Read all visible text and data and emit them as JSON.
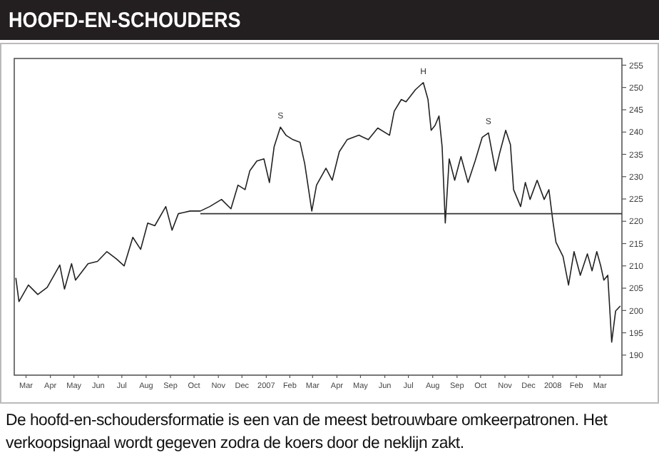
{
  "chart_data": {
    "type": "line",
    "title": "HOOFD-EN-SCHOUDERS",
    "annotations": [
      {
        "text": "S",
        "x": "2007-02-03",
        "y": 241.1
      },
      {
        "text": "H",
        "x": "2007-08-04",
        "y": 251.1
      },
      {
        "text": "S",
        "x": "2007-10-26",
        "y": 239.8
      },
      "De hoofd-en-schoudersformatie is een van de meest betrouwbare omkeerpatronen. Het verkoopsignaal wordt gegeven zodra de koers door de neklijn zakt."
    ],
    "series": [
      {
        "color": "#222222",
        "x": [
          "2006-03-03",
          "2006-03-07",
          "2006-03-19",
          "2006-03-31",
          "2006-04-12",
          "2006-04-28",
          "2006-05-04",
          "2006-05-13",
          "2006-05-18",
          "2006-06-03",
          "2006-06-15",
          "2006-06-27",
          "2006-07-09",
          "2006-07-19",
          "2006-07-30",
          "2006-08-09",
          "2006-08-18",
          "2006-08-27",
          "2006-09-10",
          "2006-09-18",
          "2006-09-26",
          "2006-10-11",
          "2006-10-24",
          "2006-11-05",
          "2006-11-20",
          "2006-12-02",
          "2006-12-11",
          "2006-12-20",
          "2006-12-26",
          "2007-01-04",
          "2007-01-13",
          "2007-01-20",
          "2007-01-26",
          "2007-02-03",
          "2007-02-10",
          "2007-02-19",
          "2007-02-28",
          "2007-03-06",
          "2007-03-15",
          "2007-03-21",
          "2007-04-02",
          "2007-04-10",
          "2007-04-19",
          "2007-04-29",
          "2007-05-14",
          "2007-05-26",
          "2007-06-07",
          "2007-06-22",
          "2007-06-28",
          "2007-07-07",
          "2007-07-13",
          "2007-07-25",
          "2007-08-04",
          "2007-08-10",
          "2007-08-14",
          "2007-08-19",
          "2007-08-24",
          "2007-08-28",
          "2007-09-01",
          "2007-09-06",
          "2007-09-13",
          "2007-09-21",
          "2007-09-30",
          "2007-10-09",
          "2007-10-18",
          "2007-10-26",
          "2007-11-04",
          "2007-11-09",
          "2007-11-17",
          "2007-11-23",
          "2007-11-27",
          "2007-12-06",
          "2007-12-12",
          "2007-12-18",
          "2007-12-27",
          "2008-01-05",
          "2008-01-11",
          "2008-01-16",
          "2008-01-20",
          "2008-01-29",
          "2008-02-05",
          "2008-02-12",
          "2008-02-20",
          "2008-02-29",
          "2008-03-06",
          "2008-03-12",
          "2008-03-17",
          "2008-03-21",
          "2008-03-26",
          "2008-03-31",
          "2008-04-05",
          "2008-04-11"
        ],
        "values": [
          207.3,
          202,
          205.7,
          203.6,
          205.2,
          210.2,
          204.8,
          210.5,
          206.8,
          210.5,
          211,
          213.2,
          211.6,
          210,
          216.4,
          213.7,
          219.6,
          219,
          223.3,
          218,
          221.7,
          222.3,
          222.3,
          223.3,
          224.9,
          222.8,
          228.1,
          227.1,
          231.3,
          233.5,
          234,
          228.7,
          236.7,
          241.1,
          239.3,
          238.3,
          237.7,
          232.9,
          222.3,
          228.1,
          231.9,
          229.2,
          235.6,
          238.3,
          239.3,
          238.3,
          240.9,
          239.3,
          244.7,
          247.3,
          246.8,
          249.5,
          251.1,
          247.3,
          240.4,
          241.5,
          243.6,
          236.7,
          219.6,
          234,
          229.2,
          234.5,
          228.7,
          233.5,
          238.8,
          239.8,
          231.3,
          235.1,
          240.4,
          237.2,
          227.1,
          223.3,
          228.7,
          224.9,
          229.2,
          224.9,
          227.1,
          220.1,
          215.3,
          212.1,
          205.7,
          213.2,
          207.9,
          212.7,
          208.9,
          213.2,
          210,
          206.8,
          207.9,
          192.9,
          199.9,
          201
        ]
      },
      {
        "color": "#333333",
        "x": [
          "2006-10-24",
          "2008-04-13"
        ],
        "values": [
          221.7,
          221.7
        ]
      }
    ],
    "xlim": [
      "2006-03-01",
      "2008-04-13"
    ],
    "xticks": [
      {
        "value": "2006-03-16",
        "label": "Mar"
      },
      {
        "value": "2006-04-16",
        "label": "Apr"
      },
      {
        "value": "2006-05-16",
        "label": "May"
      },
      {
        "value": "2006-06-16",
        "label": "Jun"
      },
      {
        "value": "2006-07-16",
        "label": "Jul"
      },
      {
        "value": "2006-08-16",
        "label": "Aug"
      },
      {
        "value": "2006-09-16",
        "label": "Sep"
      },
      {
        "value": "2006-10-16",
        "label": "Oct"
      },
      {
        "value": "2006-11-16",
        "label": "Nov"
      },
      {
        "value": "2006-12-16",
        "label": "Dec"
      },
      {
        "value": "2007-01-16",
        "label": "2007"
      },
      {
        "value": "2007-02-15",
        "label": "Feb"
      },
      {
        "value": "2007-03-16",
        "label": "Mar"
      },
      {
        "value": "2007-04-16",
        "label": "Apr"
      },
      {
        "value": "2007-05-16",
        "label": "May"
      },
      {
        "value": "2007-06-16",
        "label": "Jun"
      },
      {
        "value": "2007-07-16",
        "label": "Jul"
      },
      {
        "value": "2007-08-16",
        "label": "Aug"
      },
      {
        "value": "2007-09-16",
        "label": "Sep"
      },
      {
        "value": "2007-10-16",
        "label": "Oct"
      },
      {
        "value": "2007-11-16",
        "label": "Nov"
      },
      {
        "value": "2007-12-16",
        "label": "Dec"
      },
      {
        "value": "2008-01-16",
        "label": "2008"
      },
      {
        "value": "2008-02-15",
        "label": "Feb"
      },
      {
        "value": "2008-03-16",
        "label": "Mar"
      }
    ],
    "ylim": [
      185.5,
      256.5
    ],
    "yticks": [
      190,
      195,
      200,
      205,
      210,
      215,
      220,
      225,
      230,
      235,
      240,
      245,
      250,
      255
    ],
    "marker": "none",
    "line_style": "solid",
    "grid": false
  }
}
